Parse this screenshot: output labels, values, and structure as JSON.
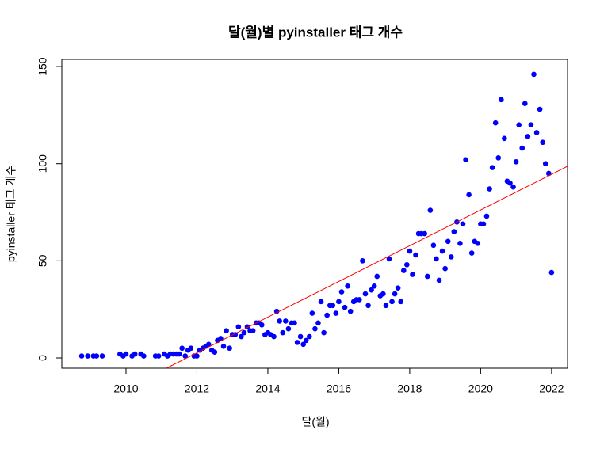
{
  "chart_data": {
    "type": "scatter",
    "title": "달(월)별 pyinstaller 태그 개수",
    "x_label": "달(월)",
    "y_label": "pyinstaller 태그 개수",
    "color": "#0000ff",
    "x": [
      2008.75,
      2008.92,
      2009.08,
      2009.17,
      2009.33,
      2009.83,
      2009.92,
      2010.0,
      2010.17,
      2010.25,
      2010.42,
      2010.5,
      2010.83,
      2010.92,
      2011.08,
      2011.17,
      2011.25,
      2011.33,
      2011.42,
      2011.5,
      2011.58,
      2011.67,
      2011.75,
      2011.83,
      2011.92,
      2012.0,
      2012.08,
      2012.17,
      2012.25,
      2012.33,
      2012.42,
      2012.5,
      2012.58,
      2012.67,
      2012.75,
      2012.83,
      2012.92,
      2013.0,
      2013.08,
      2013.17,
      2013.25,
      2013.33,
      2013.42,
      2013.5,
      2013.58,
      2013.67,
      2013.75,
      2013.83,
      2013.92,
      2014.0,
      2014.08,
      2014.17,
      2014.25,
      2014.33,
      2014.42,
      2014.5,
      2014.58,
      2014.67,
      2014.75,
      2014.83,
      2014.92,
      2015.0,
      2015.08,
      2015.17,
      2015.25,
      2015.33,
      2015.42,
      2015.5,
      2015.58,
      2015.67,
      2015.75,
      2015.83,
      2015.92,
      2016.0,
      2016.08,
      2016.17,
      2016.25,
      2016.33,
      2016.42,
      2016.5,
      2016.58,
      2016.67,
      2016.75,
      2016.83,
      2016.92,
      2017.0,
      2017.08,
      2017.17,
      2017.25,
      2017.33,
      2017.42,
      2017.5,
      2017.58,
      2017.67,
      2017.75,
      2017.83,
      2017.92,
      2018.0,
      2018.08,
      2018.17,
      2018.25,
      2018.33,
      2018.42,
      2018.5,
      2018.58,
      2018.67,
      2018.75,
      2018.83,
      2018.92,
      2019.0,
      2019.08,
      2019.17,
      2019.25,
      2019.33,
      2019.42,
      2019.5,
      2019.58,
      2019.67,
      2019.75,
      2019.83,
      2019.92,
      2020.0,
      2020.08,
      2020.17,
      2020.25,
      2020.33,
      2020.42,
      2020.5,
      2020.58,
      2020.67,
      2020.75,
      2020.83,
      2020.92,
      2021.0,
      2021.08,
      2021.17,
      2021.25,
      2021.33,
      2021.42,
      2021.5,
      2021.58,
      2021.67,
      2021.75,
      2021.83,
      2021.92,
      2022.0
    ],
    "y": [
      1,
      1,
      1,
      1,
      1,
      2,
      1,
      2,
      1,
      2,
      2,
      1,
      1,
      1,
      2,
      1,
      2,
      2,
      2,
      2,
      5,
      1,
      4,
      5,
      1,
      1,
      4,
      5,
      6,
      7,
      4,
      3,
      9,
      10,
      6,
      14,
      5,
      12,
      12,
      16,
      11,
      13,
      16,
      14,
      14,
      18,
      18,
      17,
      12,
      13,
      12,
      11,
      24,
      19,
      13,
      19,
      15,
      18,
      18,
      8,
      11,
      7,
      9,
      11,
      23,
      15,
      18,
      29,
      13,
      22,
      27,
      27,
      23,
      29,
      34,
      26,
      37,
      24,
      29,
      30,
      30,
      50,
      33,
      27,
      35,
      37,
      42,
      32,
      33,
      27,
      51,
      29,
      33,
      36,
      29,
      45,
      48,
      55,
      43,
      53,
      64,
      64,
      64,
      42,
      76,
      58,
      51,
      40,
      55,
      46,
      60,
      52,
      65,
      70,
      59,
      69,
      102,
      84,
      54,
      60,
      59,
      69,
      69,
      73,
      87,
      98,
      121,
      103,
      133,
      113,
      91,
      90,
      88,
      101,
      120,
      108,
      131,
      114,
      120,
      146,
      116,
      128,
      111,
      100,
      95,
      44
    ],
    "trend": {
      "color": "#ff0000",
      "x": [
        2011.14,
        2022.45
      ],
      "y": [
        -5.3,
        98.7
      ]
    },
    "xlim": [
      2008.19,
      2022.45
    ],
    "ylim": [
      -5.3,
      153.7
    ],
    "xticks": [
      2010,
      2012,
      2014,
      2016,
      2018,
      2020,
      2022
    ],
    "yticks": [
      0,
      50,
      100,
      150
    ]
  }
}
